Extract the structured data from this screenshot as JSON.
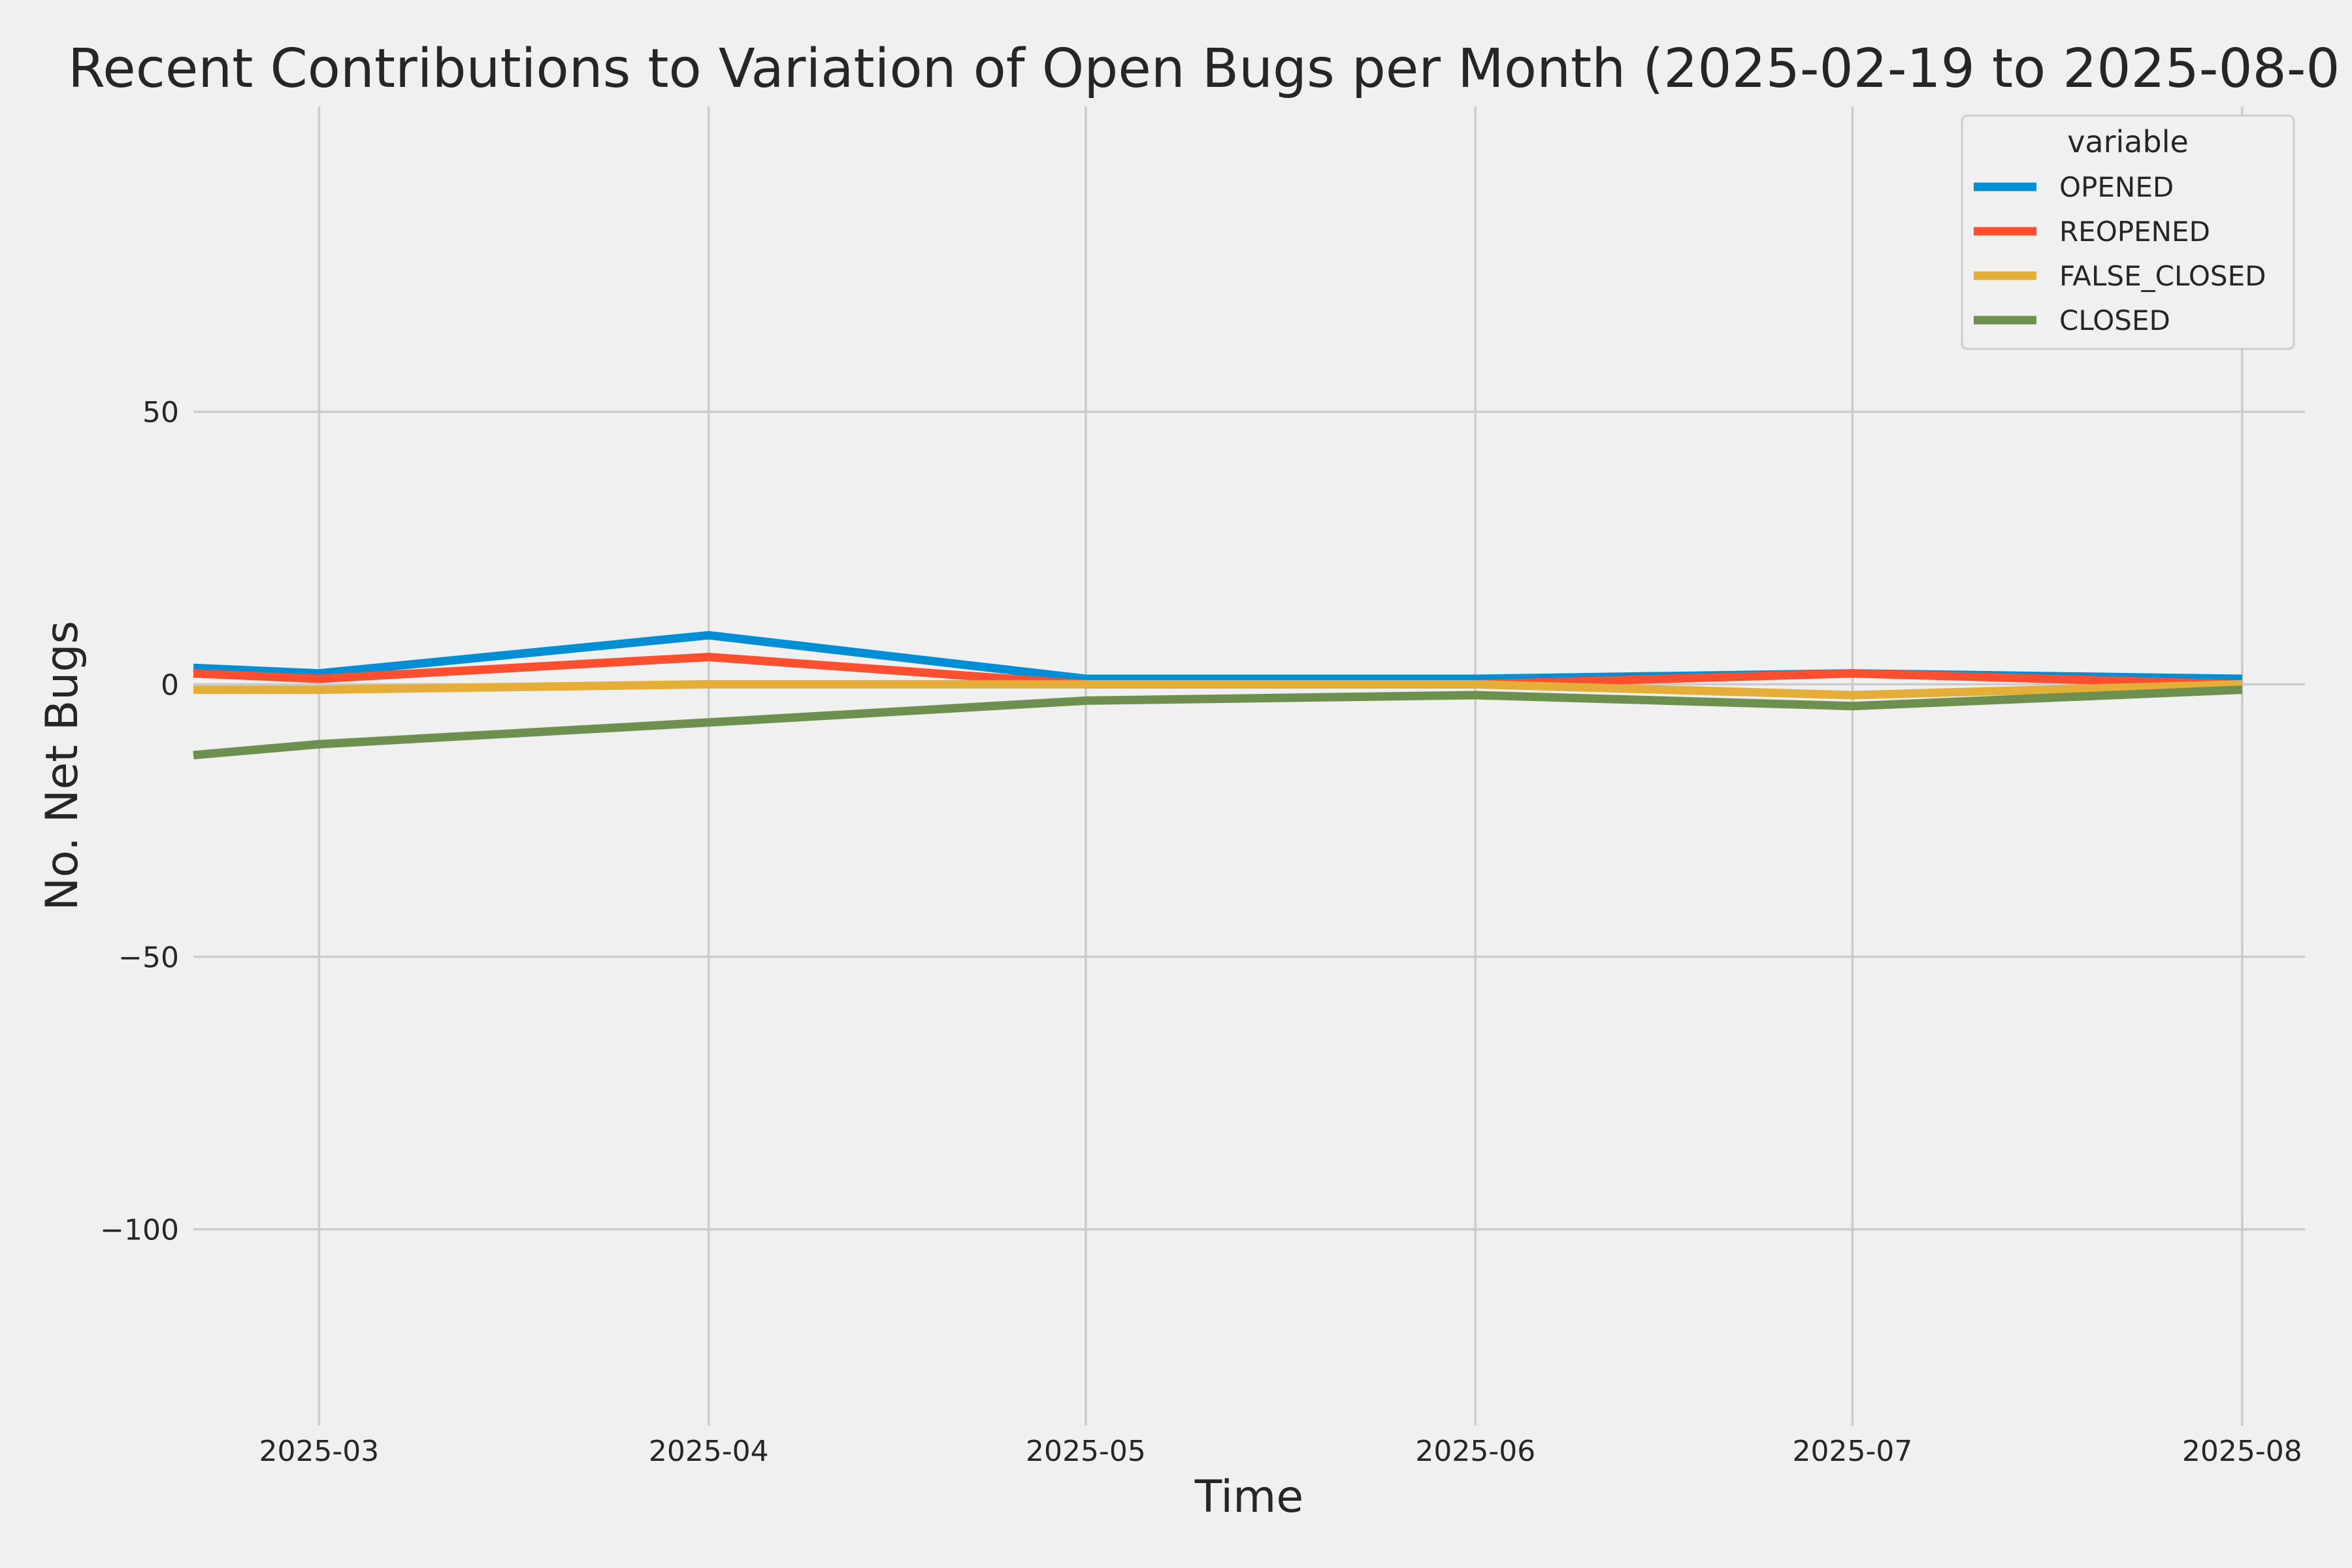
{
  "chart_data": {
    "type": "line",
    "title": "Recent Contributions to Variation of Open Bugs per Month (2025-02-19 to 2025-08-0",
    "xlabel": "Time",
    "ylabel": "No. Net Bugs",
    "x": [
      "2025-02-19",
      "2025-03-01",
      "2025-04-01",
      "2025-05-01",
      "2025-06-01",
      "2025-07-01",
      "2025-08-01"
    ],
    "xlim": [
      "2025-02-19",
      "2025-08-06"
    ],
    "x_ticks": [
      "2025-03-01",
      "2025-04-01",
      "2025-05-01",
      "2025-06-01",
      "2025-07-01",
      "2025-08-01"
    ],
    "x_tick_labels": [
      "2025-03",
      "2025-04",
      "2025-05",
      "2025-06",
      "2025-07",
      "2025-08"
    ],
    "ylim": [
      -136,
      106
    ],
    "y_ticks": [
      50,
      0,
      -50,
      -100
    ],
    "y_tick_labels": [
      "50",
      "0",
      "−50",
      "−100"
    ],
    "grid": true,
    "legend": {
      "title": "variable",
      "placement": "top-right"
    },
    "series": [
      {
        "name": "OPENED",
        "color": "#008fd5",
        "values": [
          3,
          2,
          9,
          1,
          1,
          2,
          1
        ]
      },
      {
        "name": "REOPENED",
        "color": "#fc4f30",
        "values": [
          2,
          1,
          5,
          0,
          0,
          2,
          0
        ]
      },
      {
        "name": "FALSE_CLOSED",
        "color": "#e5ae38",
        "values": [
          -1,
          -1,
          0,
          0,
          0,
          -2,
          0
        ]
      },
      {
        "name": "CLOSED",
        "color": "#6d904f",
        "values": [
          -13,
          -11,
          -7,
          -3,
          -2,
          -4,
          -1
        ]
      }
    ]
  }
}
